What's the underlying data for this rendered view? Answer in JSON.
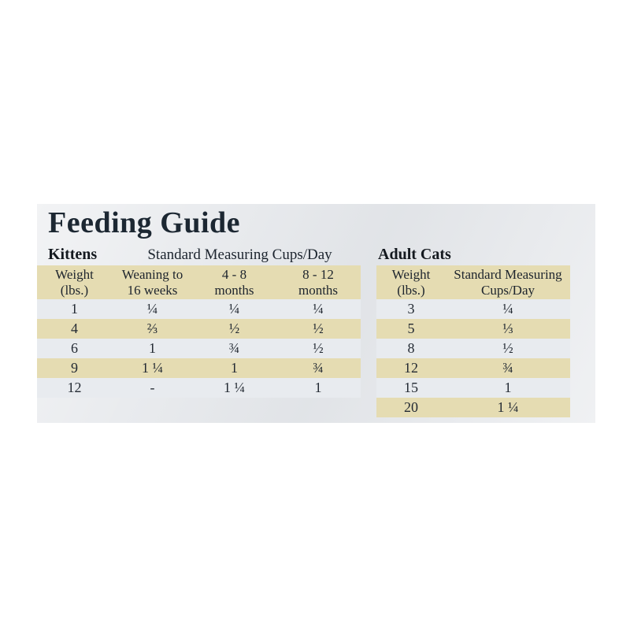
{
  "title": "Feeding Guide",
  "colors": {
    "panel_background": "#e9ebee",
    "tan_row": "#e5dcb2",
    "light_row": "#e8ebef",
    "title_text": "#1c2732",
    "body_text": "#232a33"
  },
  "kittens": {
    "label": "Kittens",
    "subtitle": "Standard Measuring Cups/Day",
    "headers": [
      "Weight\n(lbs.)",
      "Weaning to\n16 weeks",
      "4 - 8\nmonths",
      "8 - 12\nmonths"
    ],
    "rows": [
      [
        "1",
        "¼",
        "¼",
        "¼"
      ],
      [
        "4",
        "⅔",
        "½",
        "½"
      ],
      [
        "6",
        "1",
        "¾",
        "½"
      ],
      [
        "9",
        "1 ¼",
        "1",
        "¾"
      ],
      [
        "12",
        "-",
        "1 ¼",
        "1"
      ]
    ]
  },
  "adult_cats": {
    "label": "Adult Cats",
    "headers": [
      "Weight\n(lbs.)",
      "Standard Measuring\nCups/Day"
    ],
    "rows": [
      [
        "3",
        "¼"
      ],
      [
        "5",
        "⅓"
      ],
      [
        "8",
        "½"
      ],
      [
        "12",
        "¾"
      ],
      [
        "15",
        "1"
      ],
      [
        "20",
        "1 ¼"
      ]
    ]
  }
}
